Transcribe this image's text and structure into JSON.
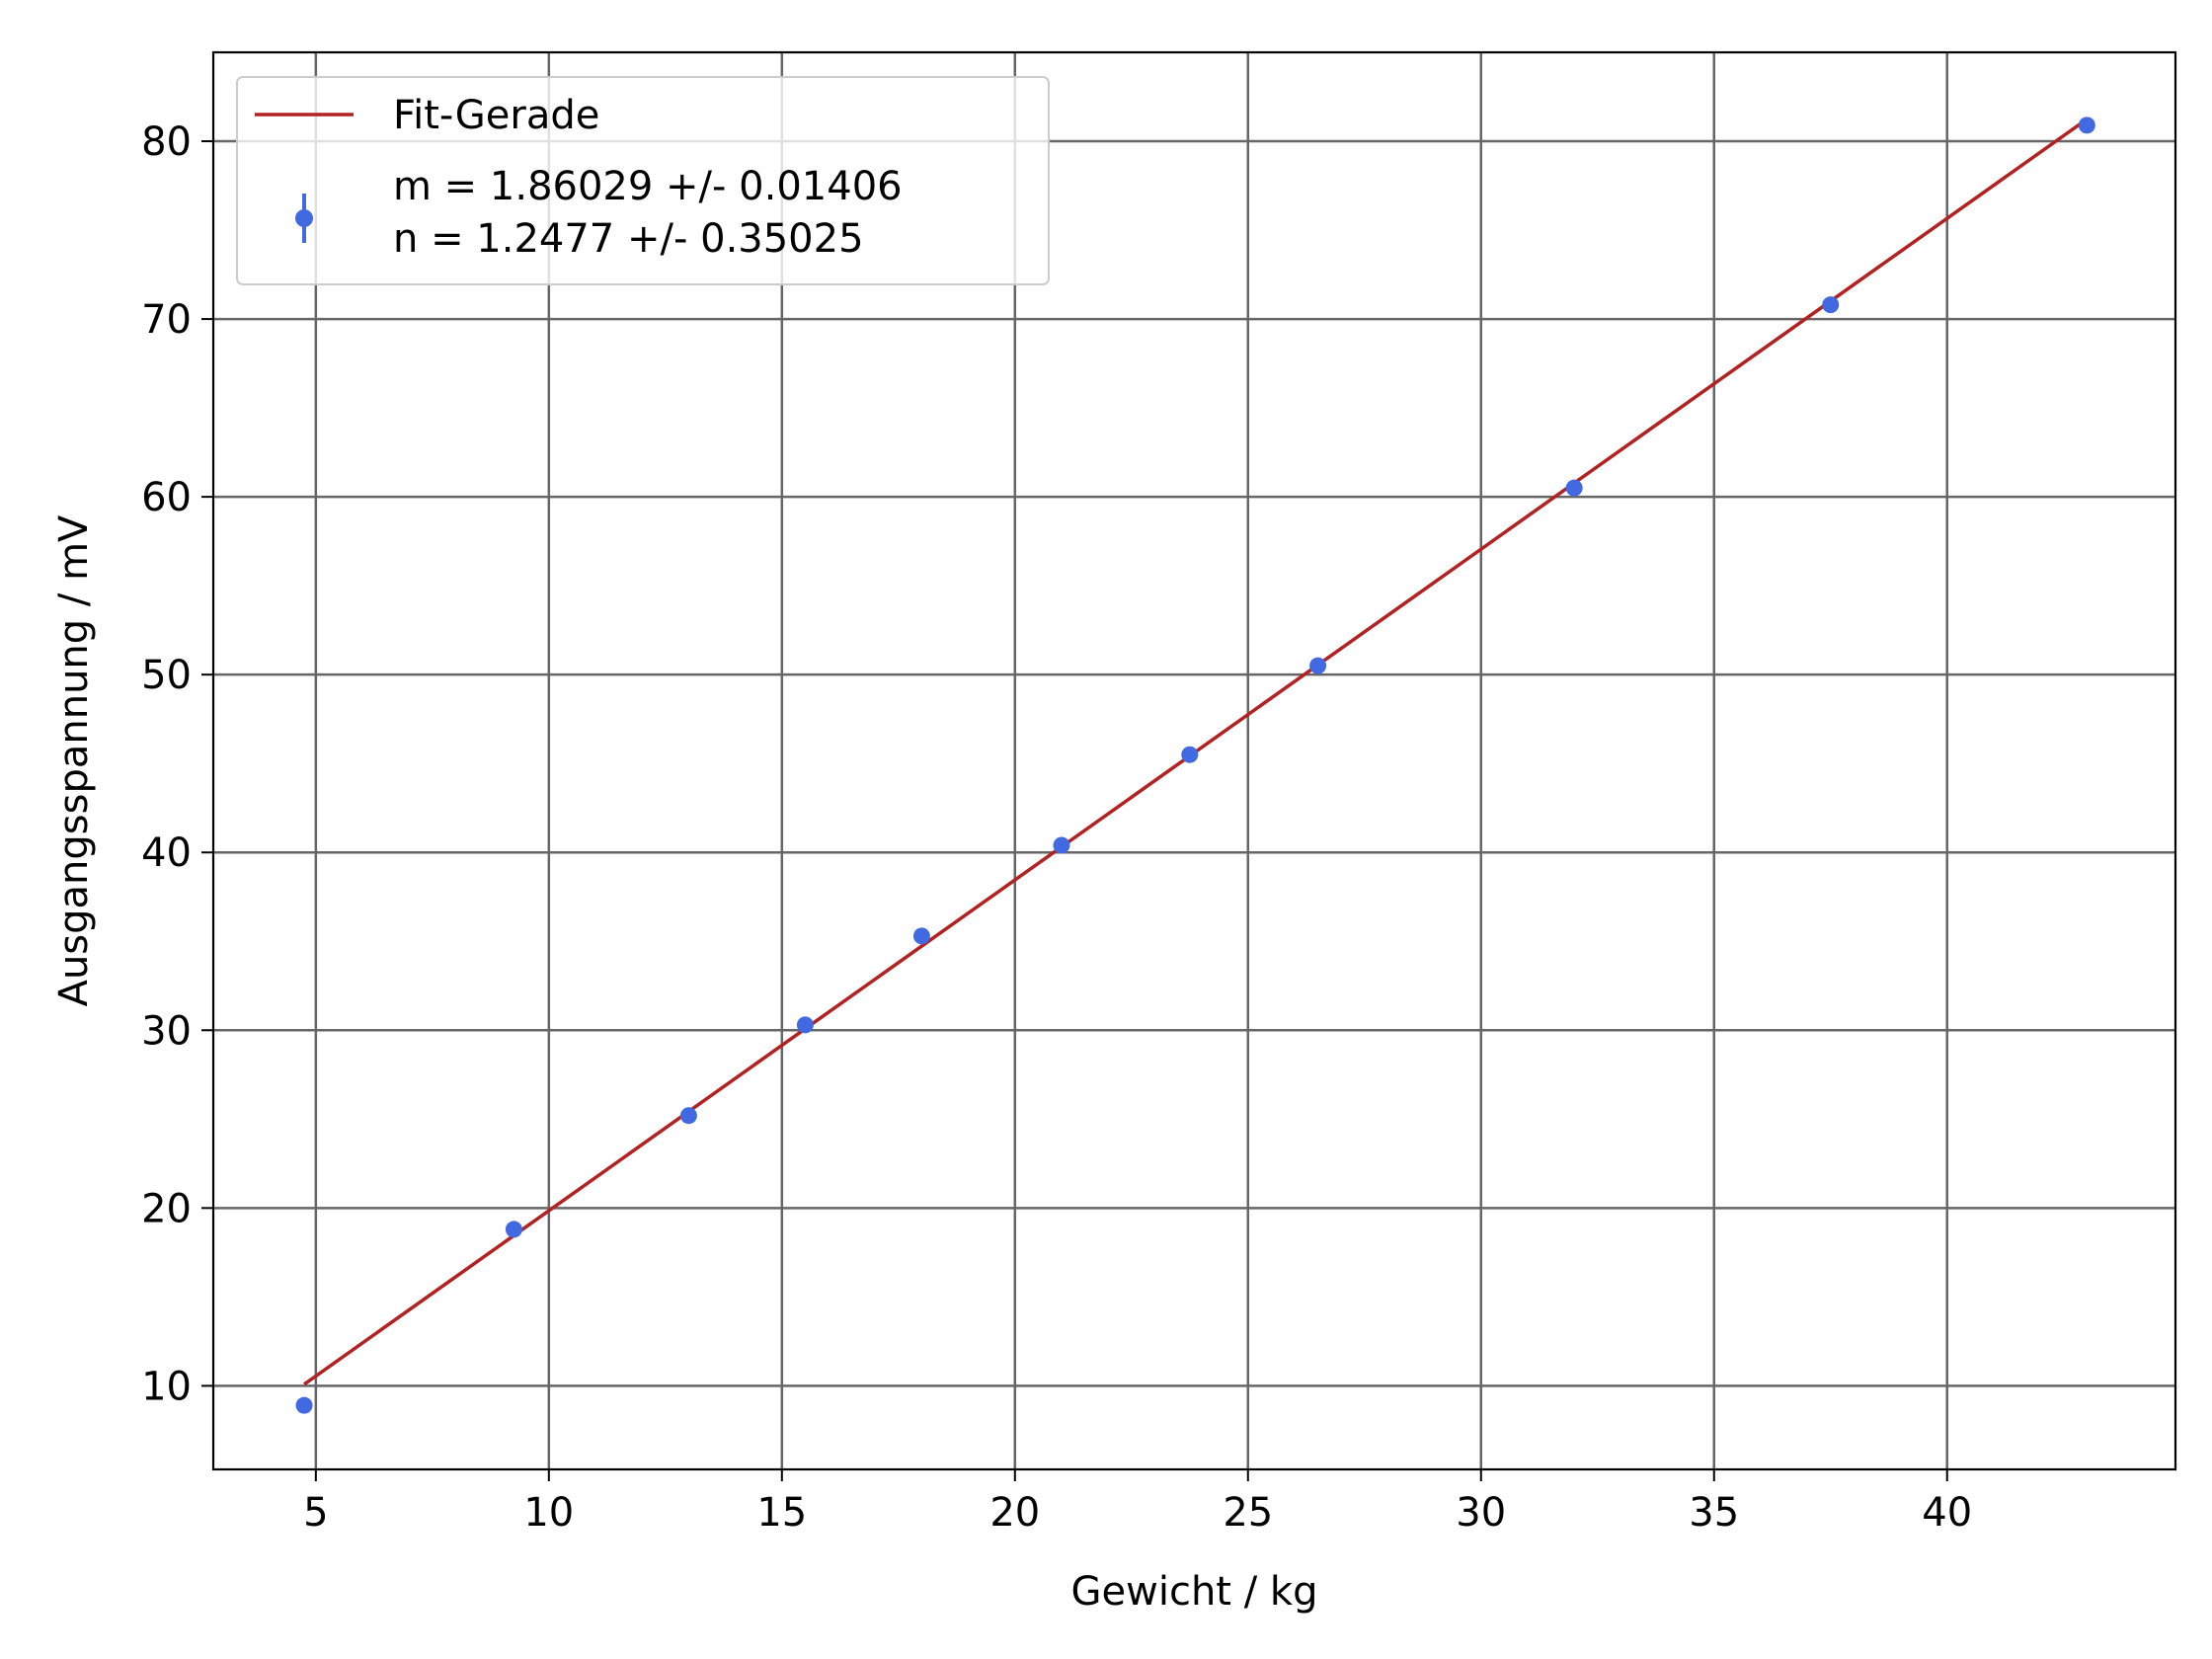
{
  "chart_data": {
    "type": "scatter",
    "xlabel": "Gewicht / kg",
    "ylabel": "Ausgangsspannung / mV",
    "xlim": [
      2.8,
      44.9
    ],
    "ylim": [
      5.3,
      85
    ],
    "xticks": [
      5,
      10,
      15,
      20,
      25,
      30,
      35,
      40
    ],
    "yticks": [
      10,
      20,
      30,
      40,
      50,
      60,
      70,
      80
    ],
    "grid": true,
    "legend_position": "top-left",
    "series": [
      {
        "kind": "points",
        "color": "#4169e1",
        "legend_lines": [
          "m = 1.86029 +/- 0.01406",
          "n = 1.2477 +/- 0.35025"
        ],
        "x": [
          4.75,
          9.25,
          13.0,
          15.5,
          18.0,
          21.0,
          23.75,
          26.5,
          32.0,
          37.5,
          43.0
        ],
        "y": [
          8.9,
          18.8,
          25.2,
          30.3,
          35.3,
          40.4,
          45.5,
          50.5,
          60.5,
          70.8,
          80.9
        ]
      },
      {
        "kind": "line",
        "name": "Fit-Gerade",
        "color": "#b22222",
        "slope": 1.86029,
        "intercept": 1.2477,
        "x_range": [
          4.75,
          43.0
        ]
      }
    ]
  }
}
